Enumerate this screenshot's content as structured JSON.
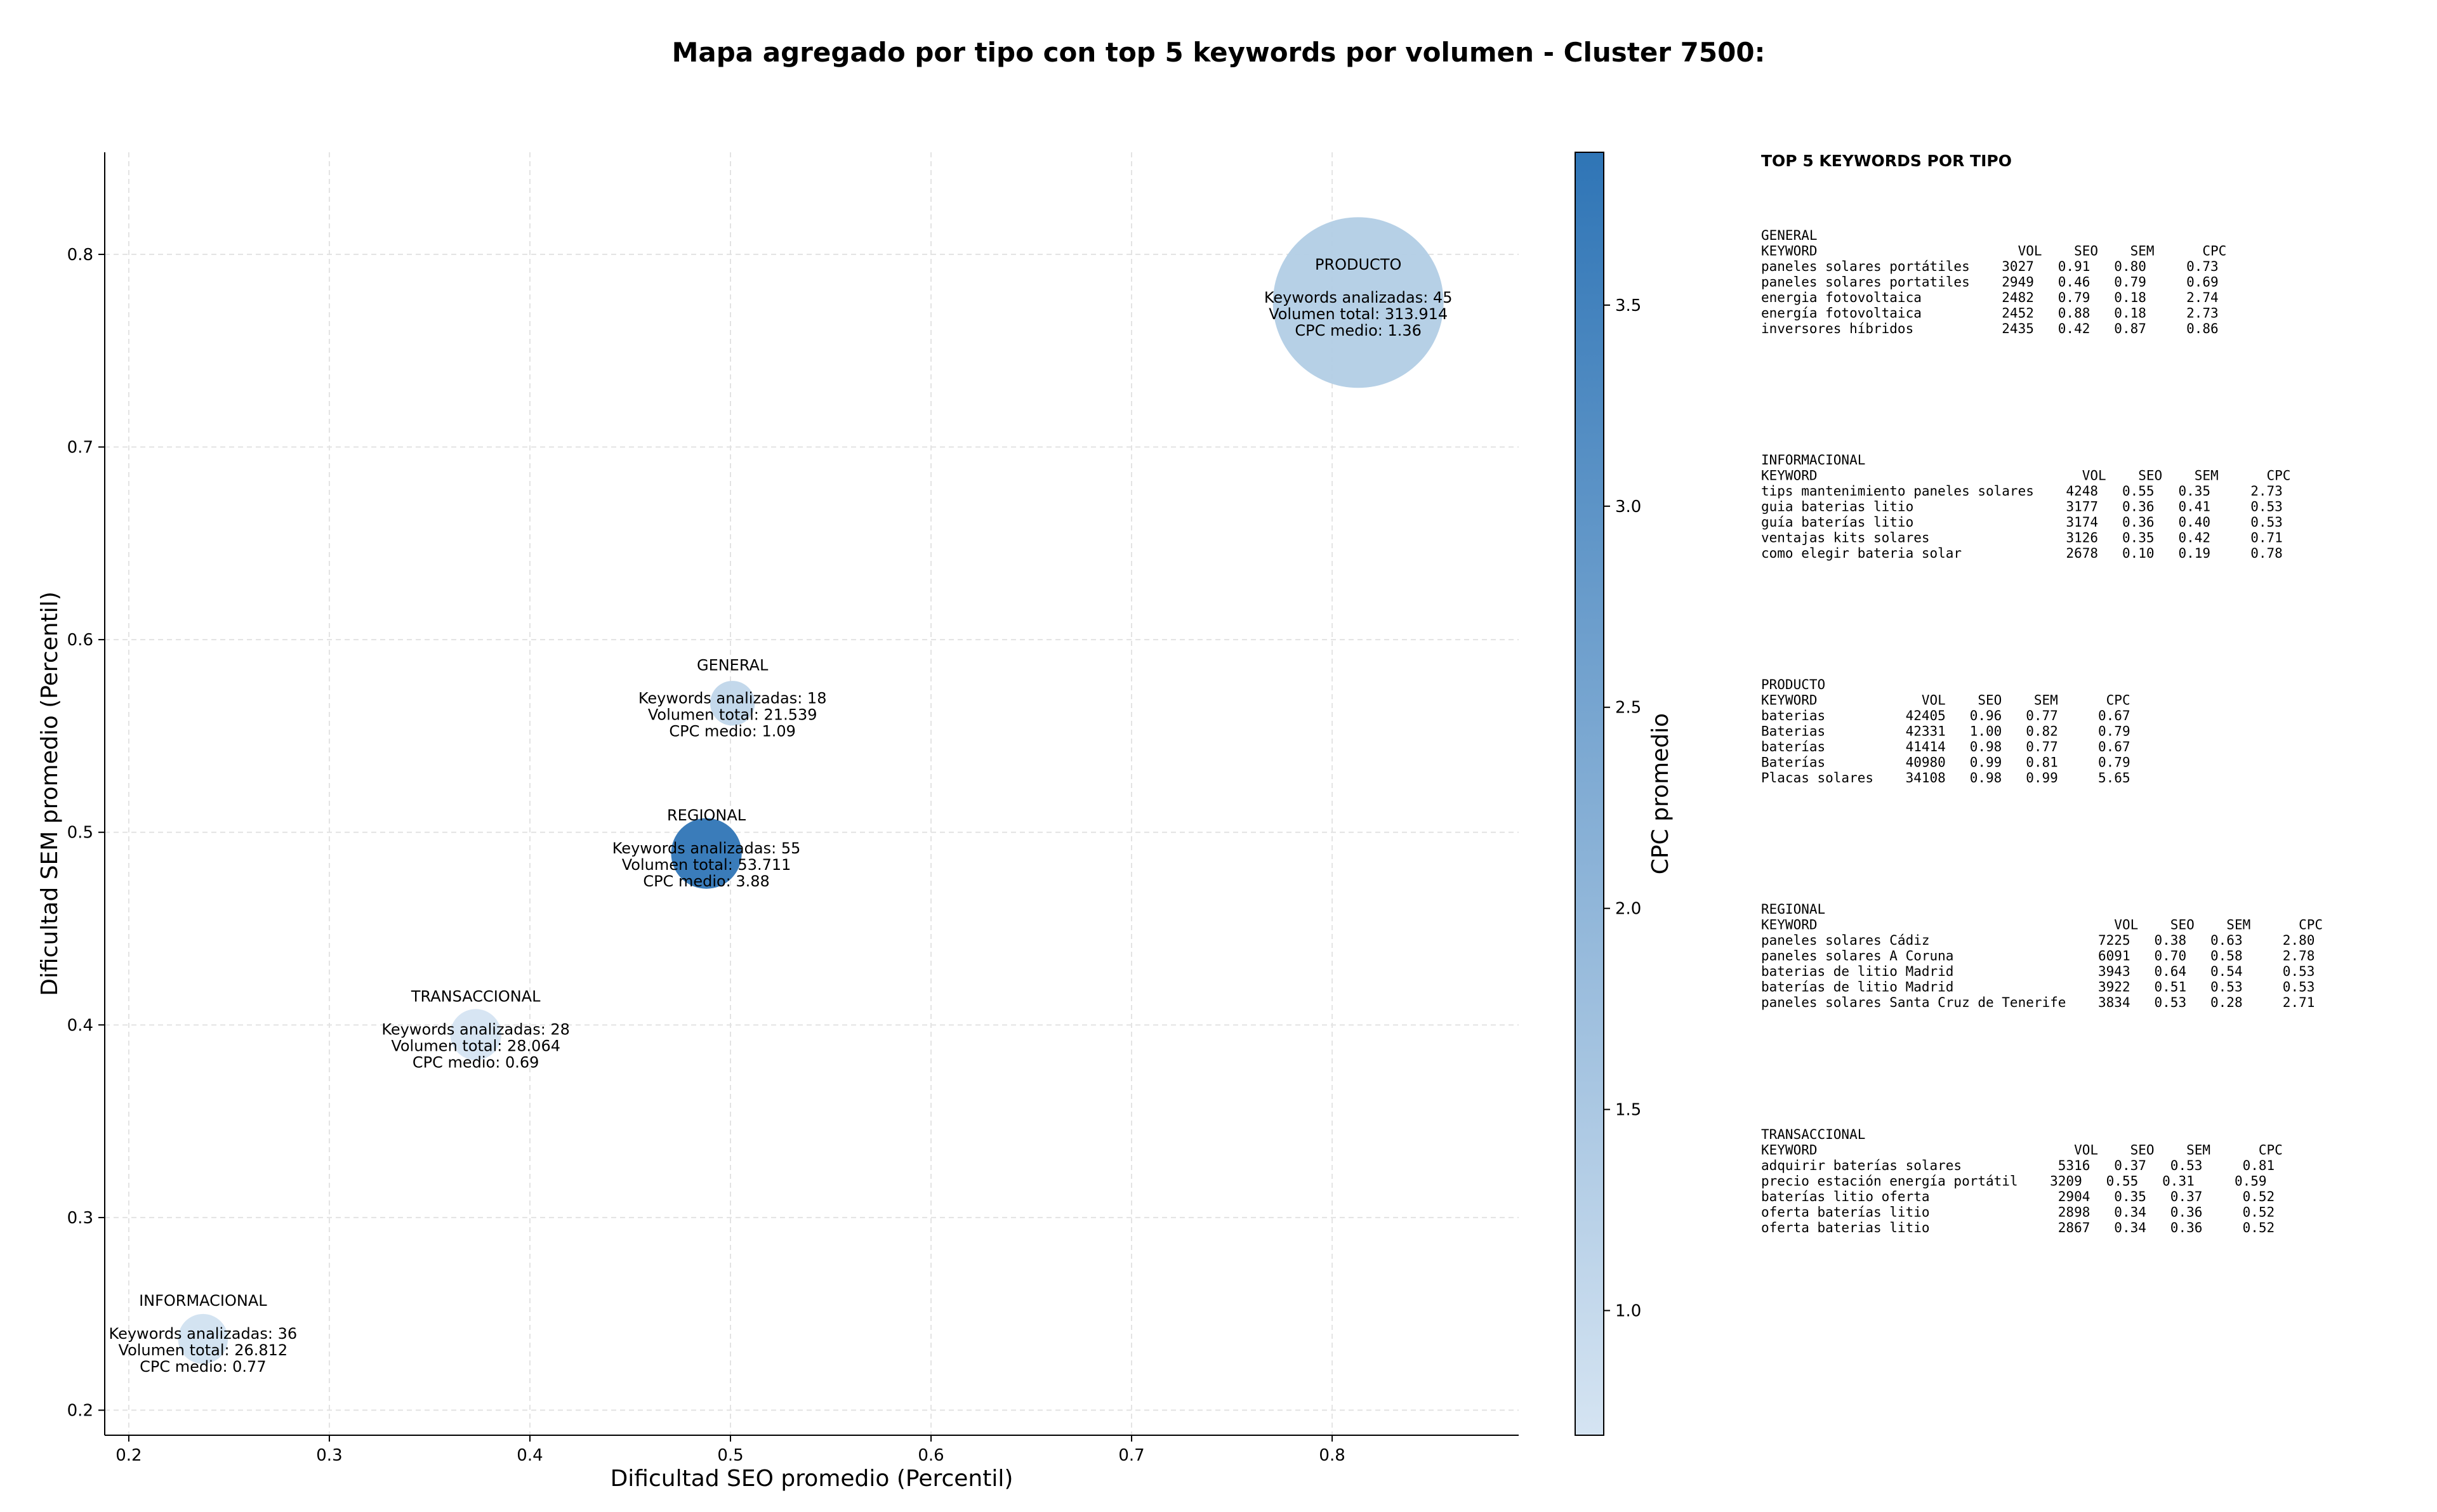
{
  "title": "Mapa agregado por tipo con top 5 keywords por volumen - Cluster 7500:",
  "colorbar": {
    "label": "CPC promedio",
    "ticks": [
      "1.0",
      "1.5",
      "2.0",
      "2.5",
      "3.0",
      "3.5"
    ],
    "range": [
      0.69,
      3.88
    ],
    "color_low": "#d5e4f2",
    "color_high": "#2f75b6"
  },
  "chart_data": {
    "type": "scatter",
    "xlabel": "Dificultad SEO promedio (Percentil)",
    "ylabel": "Dificultad SEM promedio (Percentil)",
    "xlim": [
      0.188,
      0.893
    ],
    "ylim": [
      0.187,
      0.853
    ],
    "xticks": [
      "0.2",
      "0.3",
      "0.4",
      "0.5",
      "0.6",
      "0.7",
      "0.8"
    ],
    "yticks": [
      "0.2",
      "0.3",
      "0.4",
      "0.5",
      "0.6",
      "0.7",
      "0.8"
    ],
    "grid": true,
    "points": [
      {
        "name": "INFORMACIONAL",
        "x": 0.237,
        "y": 0.237,
        "volume": 26812,
        "cpc": 0.77,
        "lines": [
          "Keywords analizadas: 36",
          "Volumen total: 26.812",
          "CPC medio: 0.77"
        ]
      },
      {
        "name": "TRANSACCIONAL",
        "x": 0.373,
        "y": 0.395,
        "volume": 28064,
        "cpc": 0.69,
        "lines": [
          "Keywords analizadas: 28",
          "Volumen total: 28.064",
          "CPC medio: 0.69"
        ]
      },
      {
        "name": "GENERAL",
        "x": 0.501,
        "y": 0.567,
        "volume": 21539,
        "cpc": 1.09,
        "lines": [
          "Keywords analizadas: 18",
          "Volumen total: 21.539",
          "CPC medio: 1.09"
        ]
      },
      {
        "name": "REGIONAL",
        "x": 0.488,
        "y": 0.489,
        "volume": 53711,
        "cpc": 3.88,
        "lines": [
          "Keywords analizadas: 55",
          "Volumen total: 53.711",
          "CPC medio: 3.88"
        ]
      },
      {
        "name": "PRODUCTO",
        "x": 0.813,
        "y": 0.775,
        "volume": 313914,
        "cpc": 1.36,
        "lines": [
          "Keywords analizadas: 45",
          "Volumen total: 313.914",
          "CPC medio: 1.36"
        ]
      }
    ]
  },
  "side_panel": {
    "title": "TOP 5 KEYWORDS POR TIPO",
    "sections": [
      {
        "name": "GENERAL",
        "lines": [
          "KEYWORD                         VOL    SEO    SEM      CPC",
          "paneles solares portátiles    3027   0.91   0.80     0.73",
          "paneles solares portatiles    2949   0.46   0.79     0.69",
          "energia fotovoltaica          2482   0.79   0.18     2.74",
          "energía fotovoltaica          2452   0.88   0.18     2.73",
          "inversores híbridos           2435   0.42   0.87     0.86"
        ]
      },
      {
        "name": "INFORMACIONAL",
        "lines": [
          "KEYWORD                                 VOL    SEO    SEM      CPC",
          "tips mantenimiento paneles solares    4248   0.55   0.35     2.73",
          "guia baterias litio                   3177   0.36   0.41     0.53",
          "guía baterías litio                   3174   0.36   0.40     0.53",
          "ventajas kits solares                 3126   0.35   0.42     0.71",
          "como elegir bateria solar             2678   0.10   0.19     0.78"
        ]
      },
      {
        "name": "PRODUCTO",
        "lines": [
          "KEYWORD             VOL    SEO    SEM      CPC",
          "baterias          42405   0.96   0.77     0.67",
          "Baterias          42331   1.00   0.82     0.79",
          "baterías          41414   0.98   0.77     0.67",
          "Baterías          40980   0.99   0.81     0.79",
          "Placas solares    34108   0.98   0.99     5.65"
        ]
      },
      {
        "name": "REGIONAL",
        "lines": [
          "KEYWORD                                     VOL    SEO    SEM      CPC",
          "paneles solares Cádiz                     7225   0.38   0.63     2.80",
          "paneles solares A Coruna                  6091   0.70   0.58     2.78",
          "baterias de litio Madrid                  3943   0.64   0.54     0.53",
          "baterías de litio Madrid                  3922   0.51   0.53     0.53",
          "paneles solares Santa Cruz de Tenerife    3834   0.53   0.28     2.71"
        ]
      },
      {
        "name": "TRANSACCIONAL",
        "lines": [
          "KEYWORD                                VOL    SEO    SEM      CPC",
          "adquirir baterías solares            5316   0.37   0.53     0.81",
          "precio estación energía portátil    3209   0.55   0.31     0.59",
          "baterías litio oferta                2904   0.35   0.37     0.52",
          "oferta baterías litio                2898   0.34   0.36     0.52",
          "oferta baterias litio                2867   0.34   0.36     0.52"
        ]
      }
    ]
  }
}
